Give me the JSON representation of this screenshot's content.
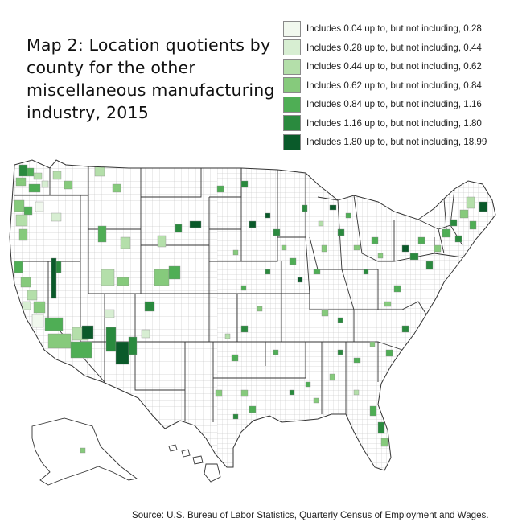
{
  "title": "Map 2: Location quotients by county for the other miscellaneous manufacturing industry, 2015",
  "legend": [
    {
      "label": "Includes 0.04 up to, but not including, 0.28",
      "color": "#f1f8ee"
    },
    {
      "label": "Includes 0.28 up to, but not including, 0.44",
      "color": "#d7eed2"
    },
    {
      "label": "Includes 0.44 up to, but not including, 0.62",
      "color": "#b4dfaa"
    },
    {
      "label": "Includes 0.62 up to, but not including, 0.84",
      "color": "#86ca7c"
    },
    {
      "label": "Includes 0.84 up to, but not including, 1.16",
      "color": "#4fae55"
    },
    {
      "label": "Includes 1.16 up to, but not including, 1.80",
      "color": "#2a8a3e"
    },
    {
      "label": "Includes 1.80 up to, but not including, 18.99",
      "color": "#0a5a2a"
    }
  ],
  "source": "Source: U.S. Bureau of Labor Statistics, Quarterly Census of Employment and Wages.",
  "map": {
    "region": "United States (contiguous), Alaska, Hawaii",
    "unit": "county",
    "outline_color": "#9a9a9a",
    "no_data_color": "#ffffff"
  }
}
